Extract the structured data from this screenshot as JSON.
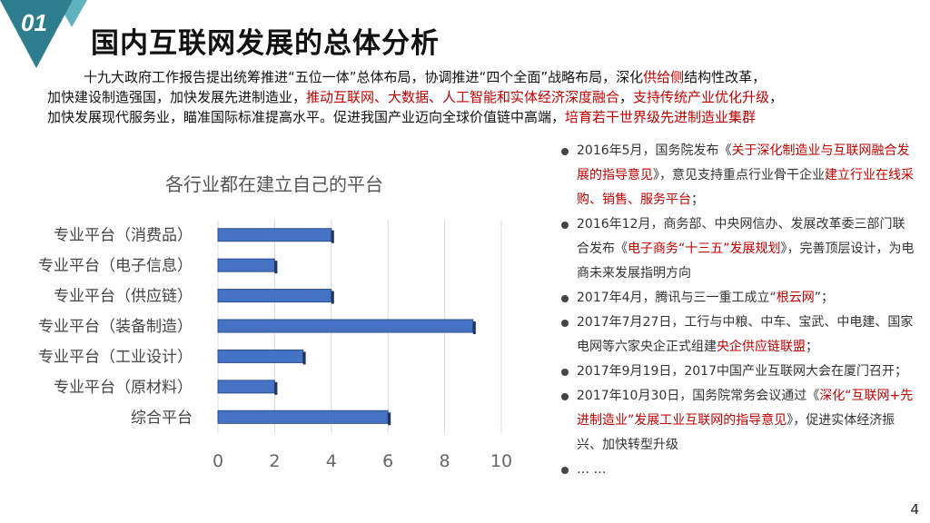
{
  "header": {
    "number": "01",
    "title": "国内互联网发展的总体分析",
    "colors": {
      "triangle_dark": "#2e7d8f",
      "triangle_light": "#5fb3c0"
    }
  },
  "intro": [
    [
      {
        "text": "十九大政府工作报告提出统筹推进“五位一体”总体布局，协调推进“四个全面”战略布局，深化"
      },
      {
        "text": "供给侧",
        "red": true
      },
      {
        "text": "结构性改革，"
      }
    ],
    [
      {
        "text": "加快建设制造强国，加快发展先进制造业，"
      },
      {
        "text": "推动互联网、大数据、人工智能和实体经济深度融合",
        "red": true
      },
      {
        "text": "，"
      },
      {
        "text": "支持传统产业优化升级",
        "red": true
      },
      {
        "text": "，"
      }
    ],
    [
      {
        "text": "加快发展现代服务业，瞄准国际标准提高水平。促进我国产业迈向全球价值链中高端，"
      },
      {
        "text": "培育若干世界级先进制造业集群",
        "red": true
      }
    ]
  ],
  "chart_data": {
    "type": "bar",
    "orientation": "horizontal",
    "title": "各行业都在建立自己的平台",
    "categories": [
      "专业平台（消费品）",
      "专业平台（电子信息）",
      "专业平台（供应链）",
      "专业平台（装备制造）",
      "专业平台（工业设计）",
      "专业平台（原材料）",
      "综合平台"
    ],
    "values": [
      4,
      2,
      4,
      9,
      3,
      2,
      6
    ],
    "xlim": [
      0,
      10
    ],
    "xticks": [
      0,
      2,
      4,
      6,
      8,
      10
    ],
    "grid": true,
    "bar_color": "#4472c4"
  },
  "bullets": [
    [
      {
        "text": "2016年5月，国务院发布《"
      },
      {
        "text": "关于深化制造业与互联网融合发展的指导意见",
        "red": true
      },
      {
        "text": "》，意见支持重点行业骨干企业"
      },
      {
        "text": "建立行业在线采购、销售、服务平台",
        "red": true
      },
      {
        "text": "；"
      }
    ],
    [
      {
        "text": "2016年12月，商务部、中央网信办、发展改革委三部门联合发布《"
      },
      {
        "text": "电子商务“十三五”发展规划",
        "red": true
      },
      {
        "text": "》，完善顶层设计，为电商未来发展指明方向"
      }
    ],
    [
      {
        "text": "2017年4月，腾讯与三一重工成立“"
      },
      {
        "text": "根云网",
        "red": true
      },
      {
        "text": "”；"
      }
    ],
    [
      {
        "text": "2017年7月27日，工行与中粮、中车、宝武、中电建、国家电网等六家央企正式组建"
      },
      {
        "text": "央企供应链联盟",
        "red": true
      },
      {
        "text": "；"
      }
    ],
    [
      {
        "text": "2017年9月19日，2017中国产业互联网大会在厦门召开；"
      }
    ],
    [
      {
        "text": "2017年10月30日，国务院常务会议通过《"
      },
      {
        "text": "深化“互联网+先进制造业”发展工业互联网的指导意见",
        "red": true
      },
      {
        "text": "》，促进实体经济振兴、加快转型升级"
      }
    ],
    [
      {
        "text": "… …"
      }
    ]
  ],
  "page_number": "4"
}
